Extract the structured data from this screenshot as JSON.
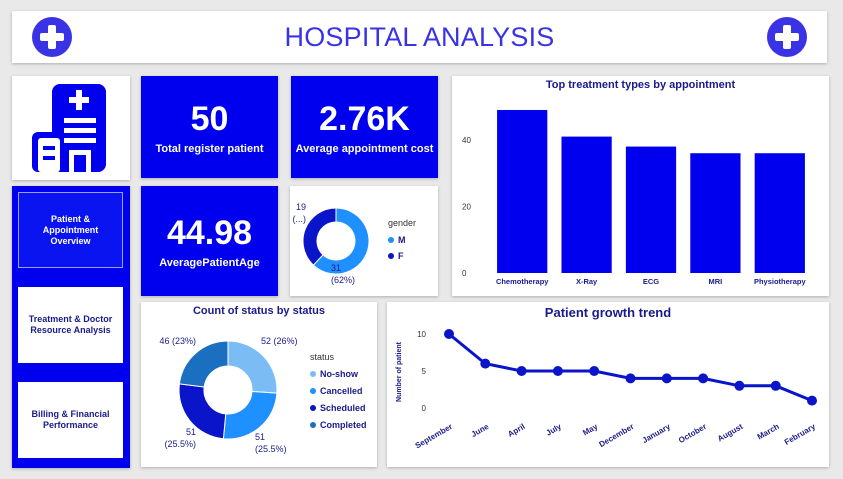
{
  "header": {
    "title": "HOSPITAL ANALYSIS",
    "icon_left": "plus-circle-icon",
    "icon_right": "plus-circle-icon"
  },
  "logo": {
    "icon": "hospital-building-icon"
  },
  "nav": {
    "items": [
      {
        "label": "Patient & Appointment Overview",
        "active": true
      },
      {
        "label": "Treatment & Doctor Resource Analysis",
        "active": false
      },
      {
        "label": "Billing & Financial Performance",
        "active": false
      }
    ]
  },
  "kpis": {
    "patients": {
      "value": "50",
      "label": "Total register patient"
    },
    "cost": {
      "value": "2.76K",
      "label": "Average appointment cost"
    },
    "age": {
      "value": "44.98",
      "label": "AveragePatientAge"
    }
  },
  "colors": {
    "brand": "#0000ee",
    "navy": "#1a1a8c",
    "light_blue": "#3a9bf0"
  },
  "chart_data": [
    {
      "type": "pie",
      "id": "gender",
      "legend_title": "gender",
      "categories": [
        "M",
        "F"
      ],
      "values": [
        31,
        19
      ],
      "labels": [
        "31\n(62%)",
        "19\n(...)"
      ],
      "colors": [
        "#1e90ff",
        "#0a14c8"
      ],
      "donut": true
    },
    {
      "type": "bar",
      "id": "treatment",
      "title": "Top treatment types by appointment",
      "categories": [
        "Chemotherapy",
        "X-Ray",
        "ECG",
        "MRI",
        "Physiotherapy"
      ],
      "values": [
        49,
        41,
        38,
        36,
        36
      ],
      "yticks": [
        0,
        20,
        40
      ],
      "ylim": [
        0,
        52
      ],
      "color": "#0000ee"
    },
    {
      "type": "pie",
      "id": "status",
      "title": "Count of status by status",
      "legend_title": "status",
      "categories": [
        "No-show",
        "Cancelled",
        "Scheduled",
        "Completed"
      ],
      "values": [
        52,
        51,
        51,
        46
      ],
      "labels": [
        "52 (26%)",
        "51\n(25.5%)",
        "51\n(25.5%)",
        "46 (23%)"
      ],
      "colors": [
        "#7cbcf5",
        "#1e90ff",
        "#0a14c8",
        "#1a6fc0"
      ],
      "donut": true
    },
    {
      "type": "line",
      "id": "growth",
      "title": "Patient growth trend",
      "ylabel": "Number of patient",
      "categories": [
        "September",
        "June",
        "April",
        "July",
        "May",
        "December",
        "January",
        "October",
        "August",
        "March",
        "February"
      ],
      "values": [
        10,
        6,
        5,
        5,
        5,
        4,
        4,
        4,
        3,
        3,
        1
      ],
      "yticks": [
        0,
        5,
        10
      ],
      "ylim": [
        0,
        10
      ],
      "color": "#0a14c8"
    }
  ]
}
